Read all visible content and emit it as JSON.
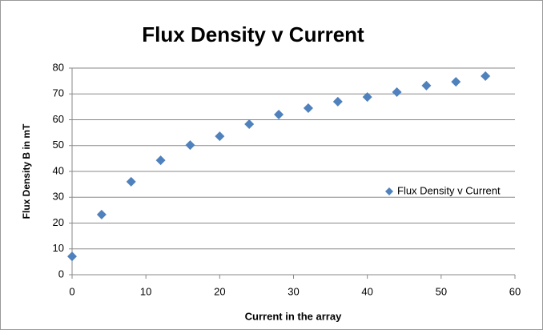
{
  "chart_data": {
    "type": "scatter",
    "title": "Flux Density v Current",
    "xlabel": "Current in the array",
    "ylabel": "Flux Density B in mT",
    "series": [
      {
        "name": "Flux Density v Current",
        "color": "#4f81bd",
        "x": [
          0,
          4,
          8,
          12,
          16,
          20,
          24,
          28,
          32,
          36,
          40,
          44,
          48,
          52,
          56
        ],
        "values": [
          7.1,
          23.3,
          36,
          44.3,
          50.2,
          53.6,
          58.3,
          62,
          64.5,
          67,
          68.8,
          70.7,
          73.2,
          74.7,
          76.9
        ]
      }
    ],
    "xlim": [
      0,
      60
    ],
    "xticks": [
      0,
      10,
      20,
      30,
      40,
      50,
      60
    ],
    "ylim": [
      0,
      80
    ],
    "yticks": [
      0,
      10,
      20,
      30,
      40,
      50,
      60,
      70,
      80
    ],
    "grid": true,
    "legend": "right"
  }
}
